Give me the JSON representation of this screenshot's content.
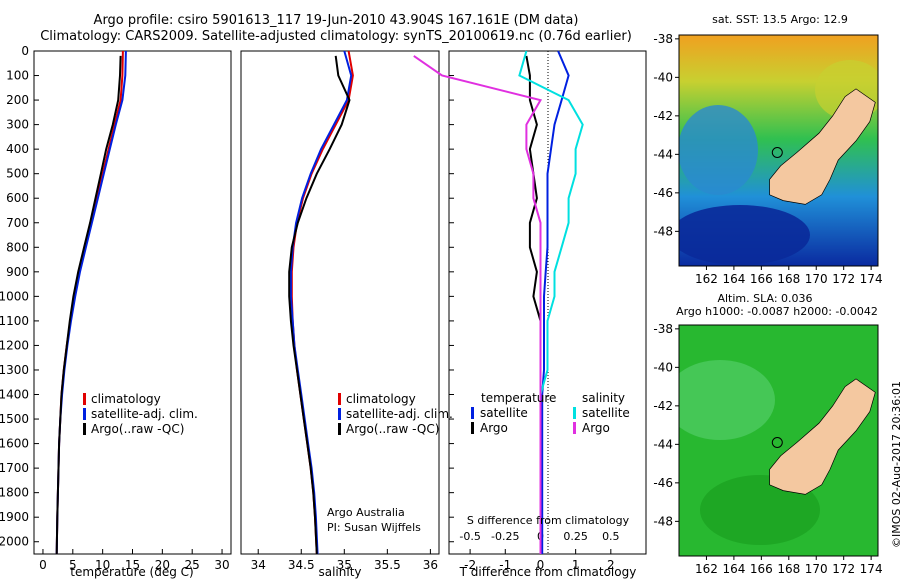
{
  "header": {
    "title_line1": "Argo profile: csiro 5901613_117 19-Jun-2010 43.904S 167.161E (DM data)",
    "title_line2": "Climatology: CARS2009. Satellite-adjusted climatology: synTS_20100619.nc (0.76d earlier)"
  },
  "credit": "©IMOS 02-Aug-2017 20:36:01",
  "colors": {
    "climatology": "#e00000",
    "satellite": "#0020e0",
    "argo": "#000000",
    "s_sat": "#00e0e0",
    "s_argo": "#e030e0",
    "land": "#f4c8a0"
  },
  "chart_data": [
    {
      "type": "line",
      "name": "temperature",
      "xlabel": "temperature (deg C)",
      "xticks": [
        0,
        5,
        10,
        15,
        20,
        25,
        30
      ],
      "xlim": [
        -1.5,
        31.5
      ],
      "ylim": [
        0,
        2050
      ],
      "yticks": [
        0,
        100,
        200,
        300,
        400,
        500,
        600,
        700,
        800,
        900,
        1000,
        1100,
        1200,
        1300,
        1400,
        1500,
        1600,
        1700,
        1800,
        1900,
        2000
      ],
      "legend": [
        "climatology",
        "satellite-adj. clim.",
        "Argo(..raw -QC)"
      ],
      "series": [
        {
          "key": "clim",
          "color": "#e00000",
          "x": [
            13.4,
            13.3,
            13.0,
            12.0,
            11.0,
            10.0,
            9.0,
            8.0,
            7.0,
            6.0,
            5.2,
            4.6,
            4.0,
            3.5,
            3.1,
            2.9,
            2.7,
            2.6,
            2.5,
            2.4,
            2.3
          ],
          "y": [
            0,
            100,
            200,
            300,
            400,
            500,
            600,
            700,
            800,
            900,
            1000,
            1100,
            1200,
            1300,
            1400,
            1500,
            1600,
            1700,
            1800,
            1900,
            2050
          ]
        },
        {
          "key": "sat",
          "color": "#0020e0",
          "x": [
            13.9,
            13.8,
            13.3,
            12.2,
            11.2,
            10.2,
            9.2,
            8.2,
            7.2,
            6.2,
            5.4,
            4.7,
            4.1,
            3.6,
            3.2,
            2.9,
            2.7,
            2.6,
            2.5,
            2.4,
            2.3
          ],
          "y": [
            0,
            100,
            200,
            300,
            400,
            500,
            600,
            700,
            800,
            900,
            1000,
            1100,
            1200,
            1300,
            1400,
            1500,
            1600,
            1700,
            1800,
            1900,
            2050
          ]
        },
        {
          "key": "argo",
          "color": "#000000",
          "x": [
            13.0,
            12.9,
            12.6,
            11.7,
            10.6,
            9.7,
            8.8,
            7.9,
            6.9,
            5.9,
            5.1,
            4.5,
            4.0,
            3.5,
            3.1,
            2.9,
            2.7,
            2.6,
            2.5,
            2.4,
            2.3
          ],
          "y": [
            20,
            100,
            200,
            300,
            400,
            500,
            600,
            700,
            800,
            900,
            1000,
            1100,
            1200,
            1300,
            1400,
            1500,
            1600,
            1700,
            1800,
            1900,
            2050
          ]
        }
      ]
    },
    {
      "type": "line",
      "name": "salinity",
      "xlabel": "salinity",
      "xticks": [
        34,
        34.5,
        35,
        35.5,
        36
      ],
      "xlim": [
        33.8,
        36.1
      ],
      "ylim": [
        0,
        2050
      ],
      "legend": [
        "climatology",
        "satellite-adj. clim.",
        "Argo(..raw -QC)"
      ],
      "annotation": [
        "Argo Australia",
        "PI: Susan Wijffels"
      ],
      "series": [
        {
          "key": "clim",
          "color": "#e00000",
          "x": [
            35.05,
            35.1,
            35.05,
            34.9,
            34.75,
            34.62,
            34.52,
            34.45,
            34.41,
            34.39,
            34.39,
            34.4,
            34.42,
            34.45,
            34.49,
            34.53,
            34.57,
            34.61,
            34.64,
            34.66,
            34.68
          ],
          "y": [
            0,
            100,
            200,
            300,
            400,
            500,
            600,
            700,
            800,
            900,
            1000,
            1100,
            1200,
            1300,
            1400,
            1500,
            1600,
            1700,
            1800,
            1900,
            2050
          ]
        },
        {
          "key": "sat",
          "color": "#0020e0",
          "x": [
            35.0,
            35.08,
            35.03,
            34.88,
            34.73,
            34.61,
            34.51,
            34.44,
            34.4,
            34.38,
            34.38,
            34.4,
            34.42,
            34.46,
            34.5,
            34.54,
            34.58,
            34.62,
            34.65,
            34.67,
            34.69
          ],
          "y": [
            0,
            100,
            200,
            300,
            400,
            500,
            600,
            700,
            800,
            900,
            1000,
            1100,
            1200,
            1300,
            1400,
            1500,
            1600,
            1700,
            1800,
            1900,
            2050
          ]
        },
        {
          "key": "argo",
          "color": "#000000",
          "x": [
            34.9,
            34.93,
            35.06,
            34.97,
            34.83,
            34.68,
            34.56,
            34.46,
            34.39,
            34.36,
            34.36,
            34.38,
            34.41,
            34.45,
            34.49,
            34.53,
            34.57,
            34.61,
            34.64,
            34.66,
            34.68
          ],
          "y": [
            20,
            100,
            200,
            300,
            400,
            500,
            600,
            700,
            800,
            900,
            1000,
            1100,
            1200,
            1300,
            1400,
            1500,
            1600,
            1700,
            1800,
            1900,
            2050
          ]
        }
      ]
    },
    {
      "type": "line",
      "name": "differences",
      "xlabel": "T difference from climatology",
      "xlabel2": "S difference from climatology",
      "xticks": [
        -2,
        -1,
        0,
        1,
        2
      ],
      "xticks2": [
        -0.5,
        -0.25,
        0,
        0.25,
        0.5
      ],
      "xticklabels2": [
        "-0.5",
        "-0.25",
        "0",
        "0.25",
        "0.5"
      ],
      "xlim": [
        -2.6,
        3.0
      ],
      "ylim": [
        0,
        2050
      ],
      "legend_t_header": "temperature",
      "legend_s_header": "salinity",
      "legend_t": [
        "satellite",
        "Argo"
      ],
      "legend_s": [
        "satellite",
        "Argo"
      ],
      "series": [
        {
          "key": "t_sat",
          "color": "#0020e0",
          "x": [
            0.5,
            0.8,
            0.6,
            0.4,
            0.3,
            0.2,
            0.2,
            0.2,
            0.2,
            0.15,
            0.1,
            0.1,
            0.1,
            0.1,
            0.05,
            0.05,
            0.05,
            0.05,
            0.05,
            0.05,
            0.05
          ],
          "y": [
            0,
            100,
            200,
            300,
            400,
            500,
            600,
            700,
            800,
            900,
            1000,
            1100,
            1200,
            1300,
            1400,
            1500,
            1600,
            1700,
            1800,
            1900,
            2050
          ]
        },
        {
          "key": "t_argo",
          "color": "#000000",
          "x": [
            -0.4,
            -0.3,
            -0.3,
            -0.1,
            -0.3,
            -0.2,
            -0.1,
            -0.3,
            -0.3,
            -0.1,
            -0.2,
            0.0,
            0.0,
            0.0,
            0.0,
            0.0,
            0.0,
            0.0,
            0.0,
            0.0,
            0.0
          ],
          "y": [
            20,
            100,
            200,
            300,
            400,
            500,
            600,
            700,
            800,
            900,
            1000,
            1100,
            1200,
            1300,
            1400,
            1500,
            1600,
            1700,
            1800,
            1900,
            2050
          ]
        },
        {
          "key": "s_sat",
          "color": "#00e0e0",
          "x": [
            -0.1,
            -0.15,
            0.2,
            0.3,
            0.25,
            0.25,
            0.2,
            0.2,
            0.15,
            0.1,
            0.1,
            0.05,
            0.05,
            0.05,
            0.0,
            0.0,
            0.0,
            0.0,
            0.0,
            0.0,
            0.0
          ],
          "y": [
            0,
            100,
            200,
            300,
            400,
            500,
            600,
            700,
            800,
            900,
            1000,
            1100,
            1200,
            1300,
            1400,
            1500,
            1600,
            1700,
            1800,
            1900,
            2050
          ]
        },
        {
          "key": "s_argo",
          "color": "#e030e0",
          "x": [
            -0.9,
            -0.7,
            0.0,
            -0.1,
            -0.1,
            -0.05,
            -0.05,
            0.0,
            0.0,
            0.0,
            0.0,
            0.0,
            0.0,
            0.0,
            0.0,
            0.0,
            0.0,
            0.0,
            0.0,
            0.0,
            0.0
          ],
          "y": [
            20,
            100,
            200,
            300,
            400,
            500,
            600,
            700,
            800,
            900,
            1000,
            1100,
            1200,
            1300,
            1400,
            1500,
            1600,
            1700,
            1800,
            1900,
            2050
          ]
        }
      ]
    },
    {
      "type": "heatmap",
      "name": "sst_map",
      "title": "sat. SST: 13.5 Argo: 12.9",
      "xticks": [
        162,
        164,
        166,
        168,
        170,
        172,
        174
      ],
      "yticks": [
        -38,
        -40,
        -42,
        -44,
        -46,
        -48
      ],
      "xlim": [
        160.0,
        174.5
      ],
      "ylim": [
        -49.8,
        -37.8
      ],
      "argo_position": [
        167.161,
        -43.904
      ]
    },
    {
      "type": "heatmap",
      "name": "sla_map",
      "title": "Altim. SLA: 0.036",
      "title2": "Argo h1000: -0.0087 h2000: -0.0042",
      "xticks": [
        162,
        164,
        166,
        168,
        170,
        172,
        174
      ],
      "yticks": [
        -38,
        -40,
        -42,
        -44,
        -46,
        -48
      ],
      "xlim": [
        160.0,
        174.5
      ],
      "ylim": [
        -49.8,
        -37.8
      ],
      "argo_position": [
        167.161,
        -43.904
      ]
    }
  ]
}
